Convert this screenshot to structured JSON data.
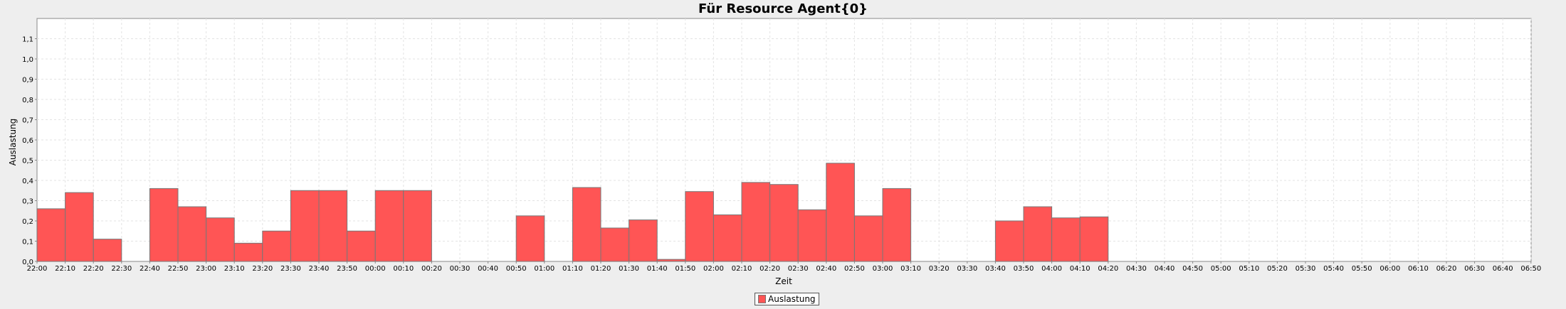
{
  "chart_data": {
    "type": "bar",
    "title": "Für Resource Agent{0}",
    "xlabel": "Zeit",
    "ylabel": "Auslastung",
    "ylim": [
      0,
      1.2
    ],
    "yticks": [
      "0,0",
      "0,1",
      "0,2",
      "0,3",
      "0,4",
      "0,5",
      "0,6",
      "0,7",
      "0,8",
      "0,9",
      "1,0",
      "1,1"
    ],
    "grid": true,
    "legend_position": "bottom-center",
    "bar_color": "#ff5555",
    "categories": [
      "22:00",
      "22:10",
      "22:20",
      "22:30",
      "22:40",
      "22:50",
      "23:00",
      "23:10",
      "23:20",
      "23:30",
      "23:40",
      "23:50",
      "00:00",
      "00:10",
      "00:20",
      "00:30",
      "00:40",
      "00:50",
      "01:00",
      "01:10",
      "01:20",
      "01:30",
      "01:40",
      "01:50",
      "02:00",
      "02:10",
      "02:20",
      "02:30",
      "02:40",
      "02:50",
      "03:00",
      "03:10",
      "03:20",
      "03:30",
      "03:40",
      "03:50",
      "04:00",
      "04:10",
      "04:20",
      "04:30",
      "04:40",
      "04:50",
      "05:00",
      "05:10",
      "05:20",
      "05:30",
      "05:40",
      "05:50",
      "06:00",
      "06:10",
      "06:20",
      "06:30",
      "06:40",
      "06:50"
    ],
    "series": [
      {
        "name": "Auslastung",
        "values": [
          0.26,
          0.34,
          0.11,
          0,
          0.36,
          0.27,
          0.215,
          0.09,
          0.15,
          0.35,
          0.35,
          0.15,
          0.35,
          0.35,
          0,
          0,
          0,
          0.225,
          0,
          0.365,
          0.165,
          0.205,
          0.01,
          0.345,
          0.23,
          0.39,
          0.38,
          0.255,
          0.485,
          0.225,
          0.36,
          0,
          0,
          0,
          0.2,
          0.27,
          0.215,
          0.22,
          0,
          0,
          0,
          0,
          0,
          0,
          0,
          0,
          0,
          0,
          0,
          0,
          0,
          0,
          0,
          0
        ]
      }
    ]
  }
}
